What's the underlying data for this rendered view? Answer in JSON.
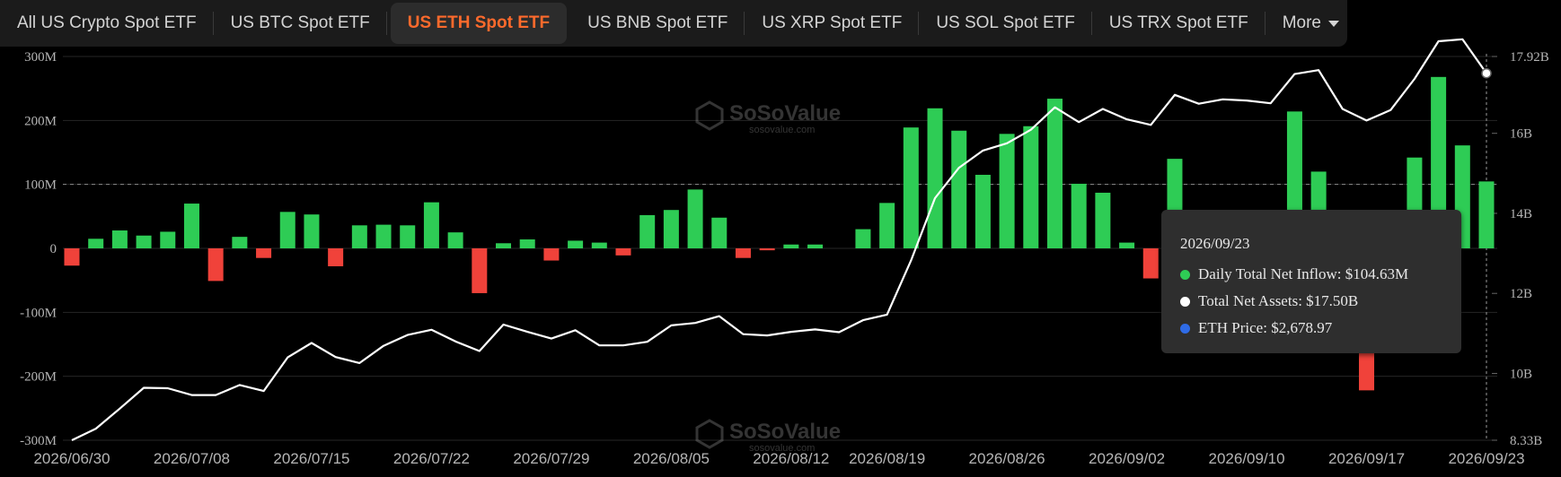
{
  "tabs": [
    {
      "label": "All US Crypto Spot ETF",
      "active": false
    },
    {
      "label": "US BTC Spot ETF",
      "active": false
    },
    {
      "label": "US ETH Spot ETF",
      "active": true
    },
    {
      "label": "US BNB Spot ETF",
      "active": false
    },
    {
      "label": "US XRP Spot ETF",
      "active": false
    },
    {
      "label": "US SOL Spot ETF",
      "active": false
    },
    {
      "label": "US TRX Spot ETF",
      "active": false
    }
  ],
  "more_label": "More",
  "watermark": "SoSoValue",
  "watermark_sub": "sosovalue.com",
  "colors": {
    "positive": "#2ecc55",
    "negative": "#f0423a",
    "assets_line": "#ffffff",
    "price_line": "#2f6be6",
    "accent": "#ff6a2c"
  },
  "tooltip": {
    "date": "2026/09/23",
    "inflow_label": "Daily Total Net Inflow:",
    "inflow_value": "$104.63M",
    "assets_label": "Total Net Assets:",
    "assets_value": "$17.50B",
    "price_label": "ETH Price:",
    "price_value": "$2,678.97"
  },
  "chart_data": {
    "type": "bar",
    "left_axis": {
      "ticks": [
        "300M",
        "200M",
        "100M",
        "0",
        "-100M",
        "-200M",
        "-300M"
      ],
      "ylim": [
        -300,
        300
      ]
    },
    "right_axis": {
      "ticks": [
        "17.92B",
        "16B",
        "14B",
        "12B",
        "10B",
        "8.33B"
      ],
      "ylim": [
        8.33,
        17.92
      ]
    },
    "x_tick_labels": [
      "2026/06/30",
      "2026/07/08",
      "2026/07/15",
      "2026/07/22",
      "2026/07/29",
      "2026/08/05",
      "2026/08/12",
      "2026/08/19",
      "2026/08/26",
      "2026/09/02",
      "2026/09/10",
      "2026/09/17",
      "2026/09/23"
    ],
    "reference_line": 100,
    "series": [
      {
        "name": "Daily Total Net Inflow",
        "type": "bar",
        "axis": "left",
        "values": [
          -27,
          15,
          28,
          20,
          26,
          70,
          -51,
          18,
          -15,
          57,
          53,
          -28,
          36,
          37,
          36,
          72,
          25,
          -70,
          8,
          14,
          -19,
          12,
          9,
          -11,
          52,
          60,
          92,
          48,
          -15,
          -3,
          6,
          6,
          0,
          30,
          71,
          189,
          219,
          184,
          115,
          179,
          191,
          234,
          101,
          87,
          9,
          -47,
          140,
          -4,
          -1,
          0,
          28,
          214,
          120,
          -83,
          -222,
          32,
          142,
          268,
          161,
          104.63
        ]
      },
      {
        "name": "Total Net Assets",
        "type": "line",
        "axis": "right",
        "values": [
          8.33,
          8.62,
          9.12,
          9.64,
          9.63,
          9.46,
          9.46,
          9.71,
          9.56,
          10.4,
          10.76,
          10.41,
          10.26,
          10.69,
          10.96,
          11.09,
          10.8,
          10.56,
          11.22,
          11.04,
          10.87,
          11.08,
          10.7,
          10.7,
          10.79,
          11.2,
          11.26,
          11.43,
          10.98,
          10.95,
          11.04,
          11.1,
          11.03,
          11.33,
          11.47,
          12.82,
          14.38,
          15.14,
          15.57,
          15.75,
          16.09,
          16.65,
          16.28,
          16.61,
          16.35,
          16.21,
          16.96,
          16.74,
          16.85,
          16.82,
          16.75,
          17.48,
          17.58,
          16.61,
          16.32,
          16.58,
          17.36,
          18.3,
          18.35,
          17.5
        ]
      },
      {
        "name": "ETH Price",
        "axis": "right",
        "type": "line",
        "values": []
      }
    ]
  }
}
